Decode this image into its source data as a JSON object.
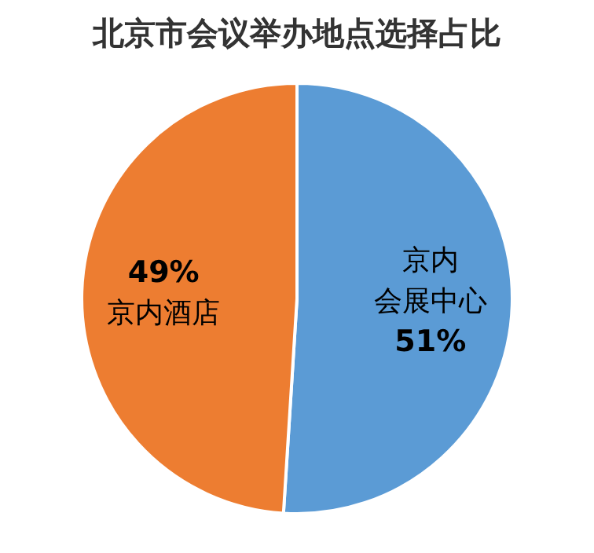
{
  "chart_data": {
    "type": "pie",
    "title": "北京市会议举办地点选择占比",
    "categories": [
      "京内会展中心",
      "京内酒店"
    ],
    "values": [
      51,
      49
    ],
    "colors": [
      "#5b9bd5",
      "#ed7d31"
    ],
    "value_labels": [
      "51%",
      "49%"
    ]
  }
}
